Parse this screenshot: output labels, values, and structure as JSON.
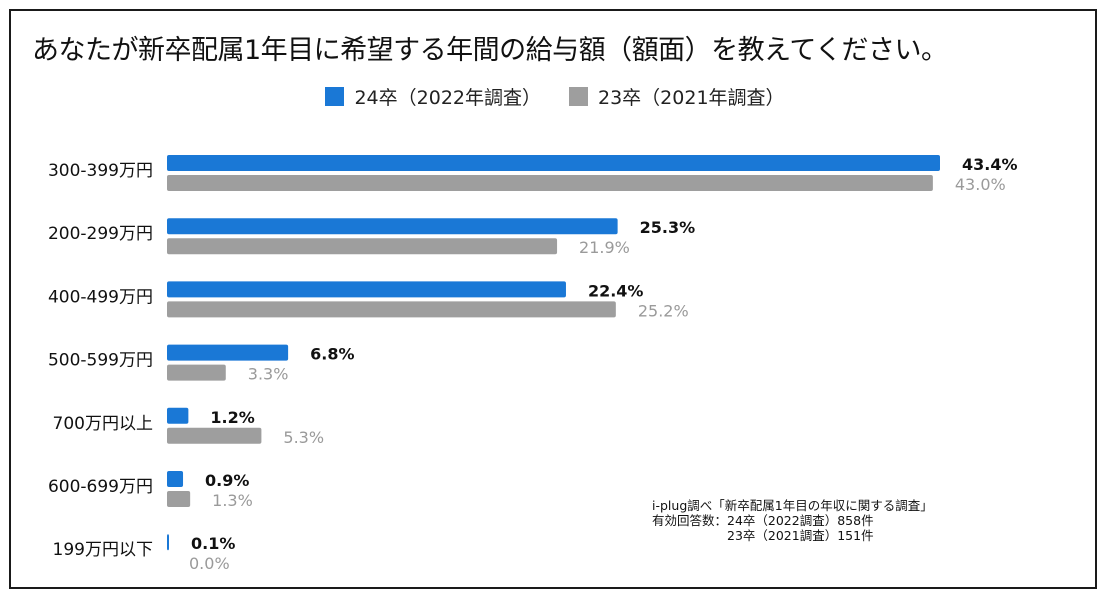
{
  "chart_data": {
    "type": "bar",
    "orientation": "horizontal",
    "title": "あなたが新卒配属1年目に希望する年間の給与額（額面）を教えてください。",
    "categories": [
      "300-399万円",
      "200-299万円",
      "400-499万円",
      "500-599万円",
      "700万円以上",
      "600-699万円",
      "199万円以下"
    ],
    "series": [
      {
        "name": "24卒（2022年調査）",
        "color": "#1a78d6",
        "values": [
          43.4,
          25.3,
          22.4,
          6.8,
          1.2,
          0.9,
          0.1
        ],
        "labels": [
          "43.4%",
          "25.3%",
          "22.4%",
          "6.8%",
          "1.2%",
          "0.9%",
          "0.1%"
        ]
      },
      {
        "name": "23卒（2021年調査）",
        "color": "#9e9e9e",
        "values": [
          43.0,
          21.9,
          25.2,
          3.3,
          5.3,
          1.3,
          0.0
        ],
        "labels": [
          "43.0%",
          "21.9%",
          "25.2%",
          "3.3%",
          "5.3%",
          "1.3%",
          "0.0%"
        ]
      }
    ],
    "xlim": [
      0,
      43.4
    ],
    "legend_position": "top-center",
    "grid": false
  },
  "note": {
    "line1": "i-plug調べ「新卒配属1年目の年収に関する調査」",
    "line2": "有効回答数：24卒（2022調査）858件",
    "line3": "　　　　　　23卒（2021調査）151件"
  }
}
